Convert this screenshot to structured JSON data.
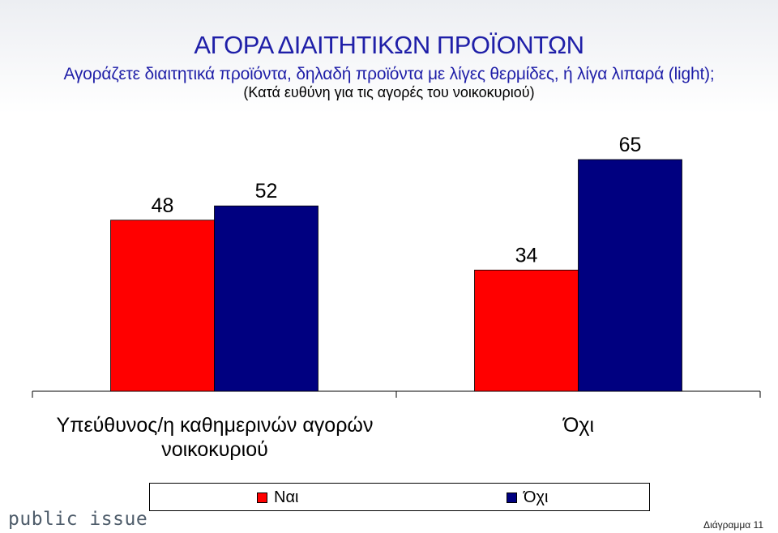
{
  "header": {
    "title": "ΑΓΟΡΑ ΔΙΑΙΤΗΤΙΚΩΝ ΠΡΟΪΟΝΤΩΝ",
    "subtitle": "Αγοράζετε διαιτητικά προϊόντα, δηλαδή προϊόντα με λίγες θερμίδες, ή λίγα λιπαρά (light);",
    "note": "(Κατά ευθύνη για τις αγορές του νοικοκυριού)"
  },
  "chart_data": {
    "type": "bar",
    "categories": [
      "Υπεύθυνος/η καθημερινών αγορών νοικοκυριού",
      "Όχι"
    ],
    "series": [
      {
        "name": "Ναι",
        "values": [
          48,
          34
        ],
        "color": "#ff0000"
      },
      {
        "name": "Όχι",
        "values": [
          52,
          65
        ],
        "color": "#000080"
      }
    ],
    "ylim": [
      0,
      70
    ],
    "grid": false,
    "legend": "bottom"
  },
  "category_labels": {
    "first_line1": "Υπεύθυνος/η καθημερινών αγορών",
    "first_line2": "νοικοκυριού",
    "second": "Όχι"
  },
  "legend": [
    {
      "label": "Ναι",
      "color": "#ff0000"
    },
    {
      "label": "Όχι",
      "color": "#000080"
    }
  ],
  "footer": {
    "brand": "public issue",
    "page_label": "Διάγραμμα 11"
  }
}
